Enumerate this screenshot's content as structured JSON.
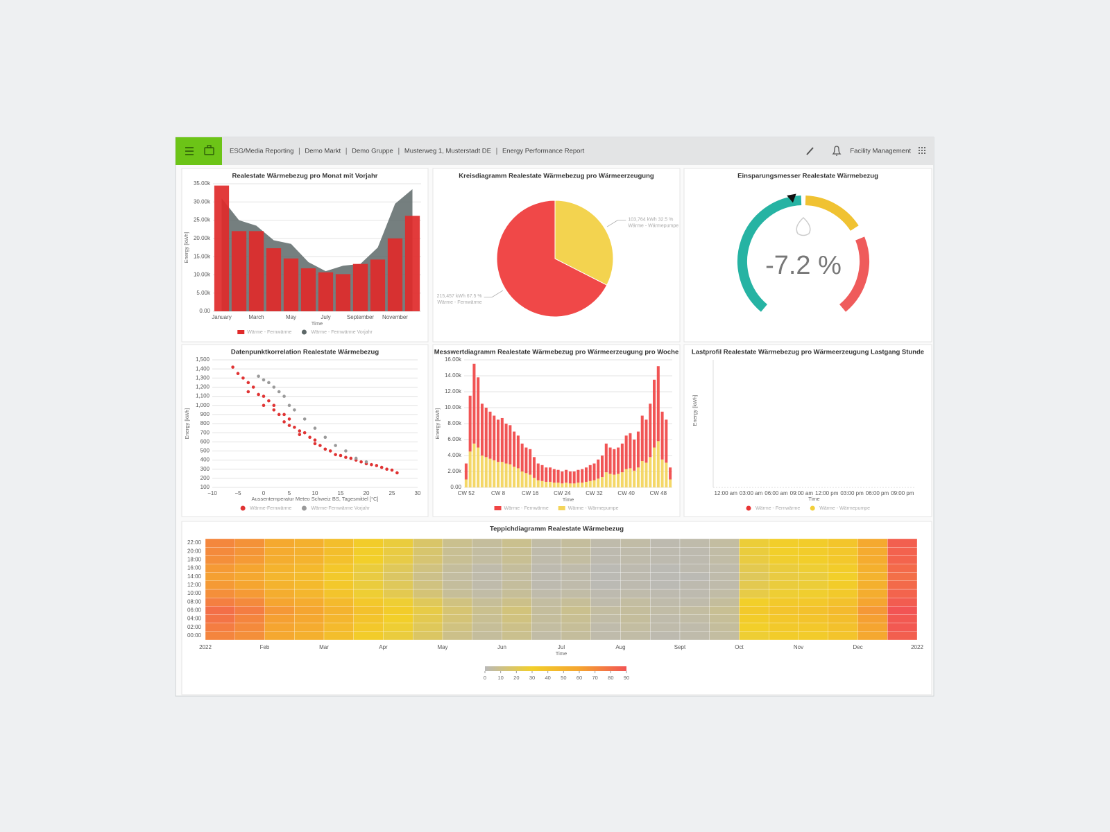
{
  "header": {
    "breadcrumbs": [
      "ESG/Media Reporting",
      "Demo Markt",
      "Demo Gruppe",
      "Musterweg 1, Musterstadt DE",
      "Energy Performance Report"
    ],
    "account": "Facility Management"
  },
  "chart_data": [
    {
      "type": "bar",
      "title": "Realestate Wärmebezug pro Monat mit Vorjahr",
      "y_label": "Energy [kWh]",
      "x_label": "Time",
      "categories": [
        "January",
        null,
        "March",
        null,
        "May",
        null,
        "July",
        null,
        "September",
        null,
        "November",
        null
      ],
      "series": [
        {
          "name": "Wärme - Fernwärme",
          "color": "#e02a2a",
          "values": [
            34500,
            22000,
            22000,
            17300,
            14500,
            11800,
            10700,
            10200,
            13000,
            14200,
            20000,
            26200
          ]
        },
        {
          "name": "Wärme - Fernwärme Vorjahr",
          "color": "#5d6868",
          "kind": "area",
          "values": [
            31000,
            25000,
            23500,
            19500,
            18500,
            13500,
            11000,
            12500,
            13000,
            17500,
            29500,
            33500
          ]
        }
      ],
      "ylim": [
        0,
        35000
      ],
      "yticks": [
        {
          "value": 0,
          "label": "0.00"
        },
        {
          "value": 5000,
          "label": "5.00k"
        },
        {
          "value": 10000,
          "label": "10.00k"
        },
        {
          "value": 15000,
          "label": "15.00k"
        },
        {
          "value": 20000,
          "label": "20.00k"
        },
        {
          "value": 25000,
          "label": "25.00k"
        },
        {
          "value": 30000,
          "label": "30.00k"
        },
        {
          "value": 35000,
          "label": "35.00k"
        }
      ],
      "grid": true
    },
    {
      "type": "pie",
      "title": "Kreisdiagramm Realestate Wärmebezug pro Wärmeerzeugung",
      "categories": [
        "Wärme - Fernwärme",
        "Wärme - Wärmepumpe"
      ],
      "values": [
        215457,
        103764
      ],
      "value_labels": [
        "215,457 kWh 67.5 %",
        "103,764 kWh 32.5 %"
      ],
      "colors": [
        "#f04848",
        "#f3d34f"
      ]
    },
    {
      "type": "gauge",
      "title": "Einsparungsmesser Realestate Wärmebezug",
      "values": [
        -7.2
      ],
      "value_labels": [
        "-7.2 %"
      ],
      "lim": [
        -100,
        100
      ],
      "colors": [
        "#26b3a3",
        "#f0c232",
        "#ef5b5b"
      ]
    },
    {
      "type": "scatter",
      "title": "Datenpunktkorrelation Realestate Wärmebezug",
      "y_label": "Energy [kWh]",
      "x_label": "Aussentemperatur Meteo Schweiz BS, Tagesmittel [°C]",
      "series": [
        {
          "name": "Wärme-Fernwärme",
          "color": "#e03333",
          "x": [
            -6,
            -5,
            -4,
            -3,
            -3,
            -2,
            -1,
            0,
            0,
            1,
            2,
            2,
            3,
            4,
            4,
            5,
            5,
            6,
            7,
            7,
            8,
            9,
            10,
            10,
            11,
            12,
            13,
            14,
            15,
            16,
            17,
            18,
            19,
            20,
            21,
            22,
            23,
            24,
            25,
            26
          ],
          "values": [
            1420,
            1350,
            1300,
            1250,
            1150,
            1200,
            1120,
            1100,
            1000,
            1050,
            950,
            1000,
            900,
            900,
            820,
            850,
            780,
            760,
            720,
            680,
            700,
            650,
            620,
            580,
            560,
            520,
            500,
            460,
            450,
            430,
            420,
            400,
            380,
            360,
            350,
            340,
            320,
            300,
            290,
            260
          ]
        },
        {
          "name": "Wärme-Fernwärme Vorjahr",
          "color": "#9a9a9a",
          "x": [
            -1,
            0,
            1,
            2,
            3,
            4,
            5,
            6,
            8,
            10,
            12,
            14,
            16,
            18,
            20
          ],
          "values": [
            1320,
            1280,
            1250,
            1200,
            1150,
            1100,
            1000,
            950,
            850,
            750,
            650,
            560,
            500,
            420,
            380
          ]
        }
      ],
      "xlim": [
        -10,
        30
      ],
      "xticks": [
        {
          "value": -10,
          "label": "−10"
        },
        {
          "value": -5,
          "label": "−5"
        },
        0,
        5,
        10,
        15,
        20,
        25,
        30
      ],
      "ylim": [
        100,
        1500
      ],
      "yticks": [
        100,
        200,
        300,
        400,
        500,
        600,
        700,
        800,
        900,
        {
          "value": 1000,
          "label": "1,000"
        },
        {
          "value": 1100,
          "label": "1,100"
        },
        {
          "value": 1200,
          "label": "1,200"
        },
        {
          "value": 1300,
          "label": "1,300"
        },
        {
          "value": 1400,
          "label": "1,400"
        },
        {
          "value": 1500,
          "label": "1,500"
        }
      ],
      "grid": true
    },
    {
      "type": "bar",
      "stacked": true,
      "title": "Messwertdiagramm Realestate Wärmebezug pro Wärmeerzeugung pro Woche",
      "y_label": "Energy [kWh]",
      "x_label": "Time",
      "categories": [
        "CW 52",
        null,
        null,
        null,
        null,
        null,
        null,
        null,
        "CW 8",
        null,
        null,
        null,
        null,
        null,
        null,
        null,
        "CW 16",
        null,
        null,
        null,
        null,
        null,
        null,
        null,
        "CW 24",
        null,
        null,
        null,
        null,
        null,
        null,
        null,
        "CW 32",
        null,
        null,
        null,
        null,
        null,
        null,
        null,
        "CW 40",
        null,
        null,
        null,
        null,
        null,
        null,
        null,
        "CW 48",
        null,
        null,
        null
      ],
      "series": [
        {
          "name": "Wärme - Fernwärme",
          "color": "#f04545",
          "values": [
            2000,
            7000,
            10000,
            8800,
            6500,
            6200,
            5900,
            5600,
            5300,
            5500,
            5000,
            4900,
            4400,
            4100,
            3500,
            3200,
            3200,
            2600,
            2100,
            2000,
            1800,
            1800,
            1700,
            1600,
            1500,
            1600,
            1500,
            1500,
            1600,
            1700,
            1800,
            2000,
            2100,
            2400,
            2700,
            3600,
            3300,
            3200,
            3300,
            3600,
            4200,
            4400,
            3900,
            4500,
            5700,
            5400,
            6700,
            8500,
            9400,
            6000,
            5400,
            1500
          ]
        },
        {
          "name": "Wärme - Wärmepumpe",
          "color": "#f3d45a",
          "values": [
            1000,
            4500,
            5500,
            5000,
            4000,
            3800,
            3600,
            3400,
            3200,
            3200,
            3000,
            2900,
            2600,
            2400,
            2000,
            1800,
            1600,
            1200,
            900,
            800,
            700,
            700,
            600,
            600,
            500,
            600,
            500,
            500,
            600,
            600,
            700,
            800,
            900,
            1100,
            1300,
            1900,
            1700,
            1600,
            1700,
            1900,
            2300,
            2400,
            2100,
            2500,
            3300,
            3100,
            3800,
            5000,
            5800,
            3500,
            3100,
            1000
          ]
        }
      ],
      "ylim": [
        0,
        16000
      ],
      "yticks": [
        {
          "value": 0,
          "label": "0.00"
        },
        {
          "value": 2000,
          "label": "2.00k"
        },
        {
          "value": 4000,
          "label": "4.00k"
        },
        {
          "value": 6000,
          "label": "6.00k"
        },
        {
          "value": 8000,
          "label": "8.00k"
        },
        {
          "value": 10000,
          "label": "10.00k"
        },
        {
          "value": 12000,
          "label": "12.00k"
        },
        {
          "value": 14000,
          "label": "14.00k"
        },
        {
          "value": 16000,
          "label": "16.00k"
        }
      ],
      "grid": true
    },
    {
      "type": "line",
      "title": "Lastprofil Realestate Wärmebezug pro Wärmeerzeugung Lastgang Stunde",
      "y_label": "Energy [kWh]",
      "x_label": "Time",
      "categories": [
        "12:00 am",
        "03:00 am",
        "06:00 am",
        "09:00 am",
        "12:00 pm",
        "03:00 pm",
        "06:00 pm",
        "09:00 pm"
      ],
      "series": [
        {
          "name": "Wärme - Fernwärme",
          "color": "#e83535",
          "values": [
            null,
            null,
            null,
            null,
            null,
            null,
            null,
            null
          ]
        },
        {
          "name": "Wärme - Wärmepumpe",
          "color": "#f2cf3a",
          "values": [
            null,
            null,
            null,
            null,
            null,
            null,
            null,
            null
          ]
        }
      ]
    },
    {
      "type": "heatmap",
      "title": "Teppichdiagramm Realestate Wärmebezug",
      "x_label": "Time",
      "x": [
        0,
        0.5,
        1,
        1.5,
        2,
        2.5,
        3,
        3.5,
        4,
        4.5,
        5,
        5.5,
        6,
        6.5,
        7,
        7.5,
        8,
        8.5,
        9,
        9.5,
        10,
        10.5,
        11,
        11.5
      ],
      "xlim": [
        0,
        12
      ],
      "xticks": [
        {
          "value": 0,
          "label": "2022"
        },
        {
          "value": 1,
          "label": "Feb"
        },
        {
          "value": 2,
          "label": "Mar"
        },
        {
          "value": 3,
          "label": "Apr"
        },
        {
          "value": 4,
          "label": "May"
        },
        {
          "value": 5,
          "label": "Jun"
        },
        {
          "value": 6,
          "label": "Jul"
        },
        {
          "value": 7,
          "label": "Aug"
        },
        {
          "value": 8,
          "label": "Sept"
        },
        {
          "value": 9,
          "label": "Oct"
        },
        {
          "value": 10,
          "label": "Nov"
        },
        {
          "value": 11,
          "label": "Dec"
        },
        {
          "value": 12,
          "label": "2022"
        }
      ],
      "y": [
        0,
        2,
        4,
        6,
        8,
        10,
        12,
        14,
        16,
        18,
        20,
        22
      ],
      "ylim": [
        0,
        24
      ],
      "yticks": [
        {
          "value": 0,
          "label": "00:00"
        },
        {
          "value": 2,
          "label": "02:00"
        },
        {
          "value": 4,
          "label": "04:00"
        },
        {
          "value": 6,
          "label": "06:00"
        },
        {
          "value": 8,
          "label": "08:00"
        },
        {
          "value": 10,
          "label": "10:00"
        },
        {
          "value": 12,
          "label": "12:00"
        },
        {
          "value": 14,
          "label": "14:00"
        },
        {
          "value": 16,
          "label": "16:00"
        },
        {
          "value": 18,
          "label": "18:00"
        },
        {
          "value": 20,
          "label": "20:00"
        },
        {
          "value": 22,
          "label": "22:00"
        }
      ],
      "z": [
        [
          72,
          68,
          58,
          52,
          42,
          32,
          26,
          18,
          10,
          6,
          9,
          4,
          6,
          3,
          4,
          2,
          3,
          5,
          28,
          32,
          33,
          38,
          58,
          86
        ],
        [
          75,
          70,
          60,
          55,
          45,
          35,
          28,
          20,
          12,
          7,
          10,
          5,
          7,
          3,
          5,
          3,
          3,
          6,
          30,
          34,
          35,
          40,
          60,
          88
        ],
        [
          78,
          72,
          62,
          58,
          48,
          38,
          30,
          22,
          14,
          8,
          12,
          6,
          8,
          4,
          6,
          3,
          4,
          7,
          32,
          36,
          38,
          42,
          62,
          88
        ],
        [
          80,
          75,
          65,
          60,
          50,
          40,
          32,
          24,
          15,
          9,
          13,
          6,
          9,
          5,
          6,
          4,
          5,
          8,
          34,
          38,
          40,
          45,
          65,
          90
        ],
        [
          74,
          70,
          60,
          55,
          45,
          35,
          28,
          20,
          12,
          7,
          10,
          5,
          7,
          3,
          5,
          3,
          3,
          6,
          30,
          34,
          35,
          40,
          60,
          87
        ],
        [
          68,
          64,
          54,
          48,
          38,
          28,
          22,
          14,
          7,
          4,
          7,
          3,
          4,
          2,
          3,
          2,
          2,
          4,
          24,
          28,
          29,
          34,
          54,
          84
        ],
        [
          64,
          60,
          50,
          45,
          35,
          26,
          20,
          12,
          6,
          3,
          6,
          2,
          3,
          1,
          2,
          1,
          2,
          3,
          22,
          26,
          27,
          32,
          52,
          82
        ],
        [
          62,
          58,
          48,
          44,
          34,
          25,
          18,
          10,
          5,
          3,
          5,
          2,
          3,
          1,
          2,
          1,
          1,
          3,
          20,
          25,
          26,
          30,
          50,
          80
        ],
        [
          64,
          60,
          50,
          46,
          36,
          26,
          20,
          12,
          6,
          3,
          6,
          2,
          3,
          1,
          2,
          1,
          2,
          3,
          22,
          26,
          28,
          32,
          52,
          82
        ],
        [
          68,
          64,
          54,
          50,
          40,
          30,
          24,
          15,
          8,
          5,
          8,
          3,
          5,
          2,
          3,
          2,
          2,
          4,
          25,
          29,
          31,
          35,
          55,
          84
        ],
        [
          70,
          66,
          56,
          52,
          42,
          31,
          25,
          16,
          8,
          5,
          8,
          3,
          5,
          2,
          3,
          2,
          2,
          4,
          26,
          30,
          32,
          36,
          56,
          85
        ],
        [
          71,
          67,
          57,
          52,
          42,
          32,
          26,
          17,
          9,
          6,
          9,
          4,
          6,
          3,
          4,
          2,
          3,
          5,
          27,
          31,
          32,
          37,
          57,
          86
        ]
      ],
      "zlim": [
        0,
        90
      ],
      "zticks": [
        0,
        10,
        20,
        30,
        40,
        50,
        60,
        70,
        80,
        90
      ],
      "colorscale": [
        "#b9b9b9",
        "#f2cf2a",
        "#f5a530",
        "#f25454"
      ]
    }
  ]
}
